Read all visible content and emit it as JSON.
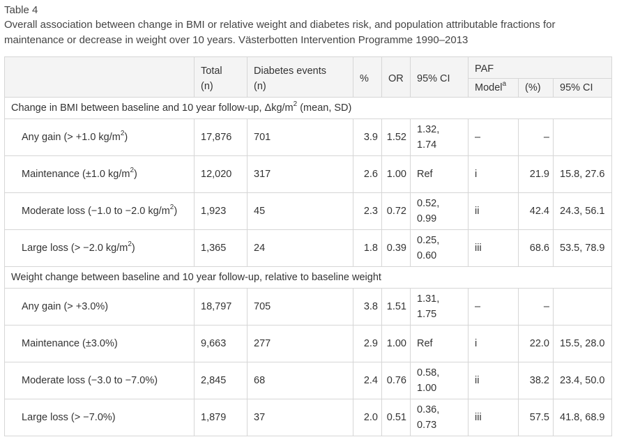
{
  "label": "Table 4",
  "caption": "Overall association between change in BMI or relative weight and diabetes risk, and population attributable fractions for maintenance or decrease in weight over 10 years. Västerbotten Intervention Programme 1990–2013",
  "headers": {
    "total": "Total",
    "total_unit": "(n)",
    "events": "Diabetes events",
    "events_unit": "(n)",
    "pct": "%",
    "or": "OR",
    "ci": "95% CI",
    "paf": "PAF",
    "model": "Model",
    "model_sup": "a",
    "paf_pct": "(%)",
    "paf_ci": "95% CI"
  },
  "sections": [
    {
      "title_pre": "Change in BMI between baseline and 10 year follow-up, Δkg/m",
      "title_sup": "2",
      "title_post": " (mean, SD)",
      "rows": [
        {
          "label": "Any gain (> +1.0 kg/m",
          "label_sup": "2",
          "label_post": ")",
          "total": "17,876",
          "events": "701",
          "pct": "3.9",
          "or": "1.52",
          "ci": "1.32, 1.74",
          "model": "–",
          "paf": "–",
          "paf_ci": ""
        },
        {
          "label": "Maintenance (±1.0 kg/m",
          "label_sup": "2",
          "label_post": ")",
          "total": "12,020",
          "events": "317",
          "pct": "2.6",
          "or": "1.00",
          "ci": "Ref",
          "model": "i",
          "paf": "21.9",
          "paf_ci": "15.8, 27.6"
        },
        {
          "label": "Moderate loss (−1.0 to −2.0 kg/m",
          "label_sup": "2",
          "label_post": ")",
          "total": "1,923",
          "events": "45",
          "pct": "2.3",
          "or": "0.72",
          "ci": "0.52, 0.99",
          "model": "ii",
          "paf": "42.4",
          "paf_ci": "24.3, 56.1"
        },
        {
          "label": "Large loss (> −2.0 kg/m",
          "label_sup": "2",
          "label_post": ")",
          "total": "1,365",
          "events": "24",
          "pct": "1.8",
          "or": "0.39",
          "ci": "0.25, 0.60",
          "model": "iii",
          "paf": "68.6",
          "paf_ci": "53.5, 78.9"
        }
      ]
    },
    {
      "title_pre": "Weight change between baseline and 10 year follow-up, relative to baseline weight",
      "title_sup": "",
      "title_post": "",
      "rows": [
        {
          "label": "Any gain (> +3.0%)",
          "label_sup": "",
          "label_post": "",
          "total": "18,797",
          "events": "705",
          "pct": "3.8",
          "or": "1.51",
          "ci": "1.31, 1.75",
          "model": "–",
          "paf": "–",
          "paf_ci": ""
        },
        {
          "label": "Maintenance (±3.0%)",
          "label_sup": "",
          "label_post": "",
          "total": "9,663",
          "events": "277",
          "pct": "2.9",
          "or": "1.00",
          "ci": "Ref",
          "model": "i",
          "paf": "22.0",
          "paf_ci": "15.5, 28.0"
        },
        {
          "label": "Moderate loss (−3.0 to −7.0%)",
          "label_sup": "",
          "label_post": "",
          "total": "2,845",
          "events": "68",
          "pct": "2.4",
          "or": "0.76",
          "ci": "0.58, 1.00",
          "model": "ii",
          "paf": "38.2",
          "paf_ci": "23.4, 50.0"
        },
        {
          "label": "Large loss (> −7.0%)",
          "label_sup": "",
          "label_post": "",
          "total": "1,879",
          "events": "37",
          "pct": "2.0",
          "or": "0.51",
          "ci": "0.36, 0.73",
          "model": "iii",
          "paf": "57.5",
          "paf_ci": "41.8, 68.9"
        }
      ]
    }
  ]
}
